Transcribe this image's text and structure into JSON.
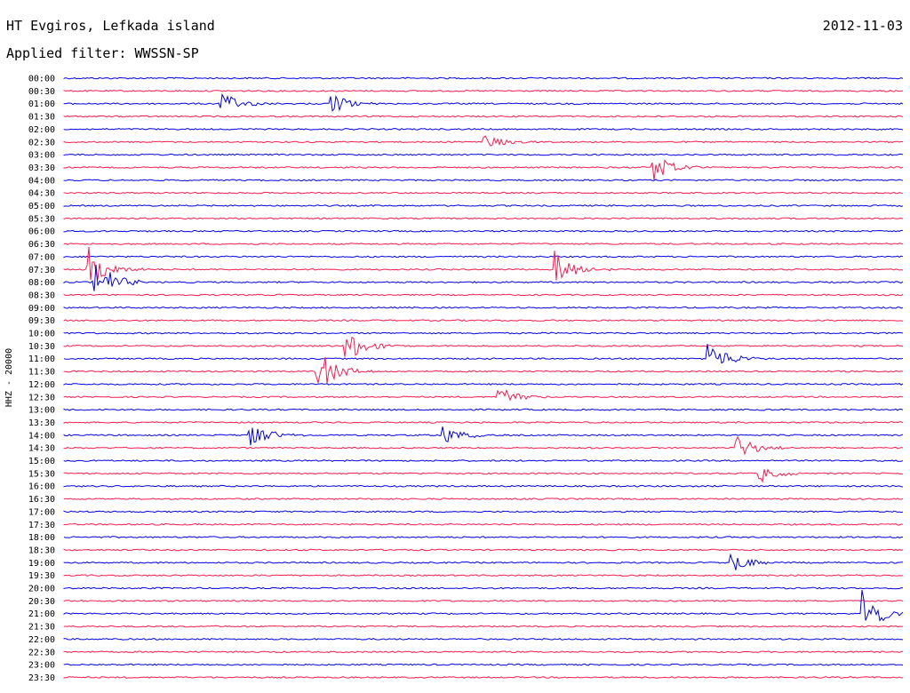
{
  "header": {
    "station": "HT Evgiros, Lefkada island",
    "date": "2012-11-03",
    "filter": "Applied filter: WWSSN-SP"
  },
  "chart_data": {
    "type": "line",
    "ylabel": "HHZ - 20000",
    "colors": {
      "odd_hour_half": "#ff1a4d",
      "on_hour": "#0000ee"
    },
    "tick_labels": [
      "00:00",
      "00:30",
      "01:00",
      "01:30",
      "02:00",
      "02:30",
      "03:00",
      "03:30",
      "04:00",
      "04:30",
      "05:00",
      "05:30",
      "06:00",
      "06:30",
      "07:00",
      "07:30",
      "08:00",
      "08:30",
      "09:00",
      "09:30",
      "10:00",
      "10:30",
      "11:00",
      "11:30",
      "12:00",
      "12:30",
      "13:00",
      "13:30",
      "14:00",
      "14:30",
      "15:00",
      "15:30",
      "16:00",
      "16:30",
      "17:00",
      "17:30",
      "18:00",
      "18:30",
      "19:00",
      "19:30",
      "20:00",
      "20:30",
      "21:00",
      "21:30",
      "22:00",
      "22:30",
      "23:00",
      "23:30"
    ],
    "series_note_events": [
      {
        "trace": "01:00",
        "min": 5.5,
        "amp": 16
      },
      {
        "trace": "01:00",
        "min": 9.5,
        "amp": 12
      },
      {
        "trace": "02:30",
        "min": 15,
        "amp": 8
      },
      {
        "trace": "03:30",
        "min": 21,
        "amp": 20
      },
      {
        "trace": "07:30",
        "min": 17.5,
        "amp": 25
      },
      {
        "trace": "07:30",
        "min": 0.8,
        "amp": 30
      },
      {
        "trace": "08:00",
        "min": 1,
        "amp": 30
      },
      {
        "trace": "10:30",
        "min": 10,
        "amp": 22
      },
      {
        "trace": "11:00",
        "min": 23,
        "amp": 22
      },
      {
        "trace": "11:30",
        "min": 9,
        "amp": 28
      },
      {
        "trace": "12:30",
        "min": 15.5,
        "amp": 15
      },
      {
        "trace": "14:00",
        "min": 6.6,
        "amp": 15
      },
      {
        "trace": "14:00",
        "min": 13.5,
        "amp": 12
      },
      {
        "trace": "14:30",
        "min": 24,
        "amp": 16
      },
      {
        "trace": "15:30",
        "min": 24.8,
        "amp": 12
      },
      {
        "trace": "19:00",
        "min": 23.8,
        "amp": 14
      },
      {
        "trace": "21:00",
        "min": 28.5,
        "amp": 30
      }
    ]
  }
}
